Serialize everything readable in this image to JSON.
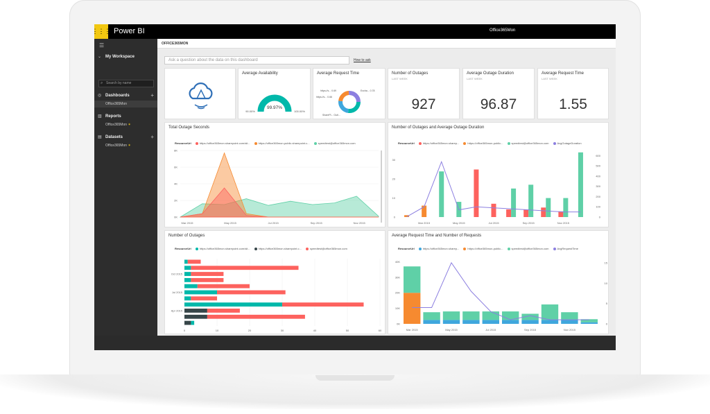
{
  "app": {
    "title": "Power BI",
    "user": "Office365Mon"
  },
  "sidebar": {
    "workspace": "My Workspace",
    "search_placeholder": "Search by name",
    "sections": [
      {
        "label": "Dashboards",
        "item": "Office365Mon"
      },
      {
        "label": "Reports",
        "item": "Office365Mon"
      },
      {
        "label": "Datasets",
        "item": "Office365Mon"
      }
    ]
  },
  "dashboard": {
    "breadcrumb": "OFFICE365MON",
    "qa_placeholder": "Ask a question about the data on this dashboard",
    "how_to_ask": "How to ask"
  },
  "tiles": {
    "availability": {
      "title": "Average Availability",
      "value": "99.97%",
      "min": "90.00%",
      "max": "100.00%"
    },
    "request_time_donut": {
      "title": "Average Request Time",
      "labels": [
        "https://s... 0.69",
        "https://s... 0.66",
        "Excha... 0.78",
        "SharePl... Outl..."
      ]
    },
    "outages": {
      "title": "Number of Outages",
      "sub": "LAST WEEK",
      "value": "927"
    },
    "outage_duration": {
      "title": "Average Outage Duration",
      "sub": "LAST WEEK",
      "value": "96.87"
    },
    "request_time": {
      "title": "Average Request Time",
      "sub": "LAST WEEK",
      "value": "1.55"
    },
    "total_outage": {
      "title": "Total Outage Seconds",
      "legend_title": "ResourceUrl",
      "legend": [
        "https://office365mon.sharepoint.com/sit...",
        "https://office365mon-public.sharepoint.c...",
        "speedtest@office365mon.com"
      ]
    },
    "outages_duration": {
      "title": "Number of Outages and Average Outage Duration",
      "legend_title": "ResourceUrl",
      "legend": [
        "https://office365mon.sharep...",
        "https://office365mon-public...",
        "speedtest@office365mon.com",
        "AvgOutageDuration"
      ]
    },
    "num_outages": {
      "title": "Number of Outages",
      "legend_title": "ResourceUrl",
      "legend": [
        "https://office365mon.sharepoint.com/sit...",
        "https://office365mon.sharepoint.c...",
        "speedtest@office365mon.com"
      ]
    },
    "req_time_requests": {
      "title": "Average Request Time and Number of Requests",
      "legend_title": "ResourceUrl",
      "legend": [
        "https://office365mon.sharep...",
        "https://office365mon-public...",
        "speedtest@office365mon.com",
        "AvgRequestTime"
      ]
    }
  },
  "colors": {
    "red": "#fd625e",
    "orange": "#f68a30",
    "teal": "#5fd0a7",
    "purple": "#8c7fe0",
    "dark": "#374649",
    "cyan": "#01b8aa",
    "blue": "#3fa7dd"
  },
  "chart_data": [
    {
      "type": "area",
      "title": "Total Outage Seconds",
      "x": [
        "Mar 2015",
        "Apr 2015",
        "May 2015",
        "Jun 2015",
        "Jul 2015",
        "Aug 2015",
        "Sep 2015",
        "Oct 2015",
        "Nov 2015",
        "Dec 2015"
      ],
      "x_tick_labels": [
        "Mar 2015",
        "May 2015",
        "Jul 2015",
        "Sep 2015",
        "Nov 2015"
      ],
      "y_tick_labels": [
        "0K",
        "2K",
        "4K",
        "6K",
        "8K"
      ],
      "ylim": [
        0,
        8000
      ],
      "series": [
        {
          "name": "https://office365mon.sharepoint.com/sit...",
          "values": [
            0,
            400,
            3500,
            200,
            0,
            0,
            0,
            0,
            0,
            0
          ]
        },
        {
          "name": "https://office365mon-public.sharepoint.c...",
          "values": [
            0,
            400,
            7700,
            400,
            0,
            0,
            0,
            0,
            0,
            0
          ]
        },
        {
          "name": "speedtest@office365mon.com",
          "values": [
            0,
            1600,
            1500,
            2200,
            1400,
            1900,
            1500,
            1700,
            2500,
            100
          ]
        }
      ]
    },
    {
      "type": "bar",
      "title": "Number of Outages and Average Outage Duration",
      "x_tick_labels": [
        "Mar 2015",
        "May 2015",
        "Jul 2015",
        "Sep 2015",
        "Nov 2015"
      ],
      "y_tick_labels": [
        "0",
        "10",
        "20",
        "30"
      ],
      "y2_tick_labels": [
        "0",
        "100",
        "200",
        "300",
        "400",
        "500",
        "600"
      ],
      "ylim": [
        0,
        35
      ],
      "y2lim": [
        0,
        650
      ],
      "categories": [
        "Feb 2015",
        "Mar 2015",
        "Apr 2015",
        "May 2015",
        "Jun 2015",
        "Jul 2015",
        "Aug 2015",
        "Sep 2015",
        "Oct 2015",
        "Nov 2015",
        "Dec 2015"
      ],
      "series": [
        {
          "name": "https://office365mon.sharep...",
          "values": [
            0,
            0,
            0,
            0,
            25,
            7,
            4,
            4,
            5,
            3,
            0
          ]
        },
        {
          "name": "https://office365mon-public...",
          "values": [
            1,
            6,
            0,
            0,
            0,
            0,
            0,
            0,
            0,
            0,
            0
          ]
        },
        {
          "name": "speedtest@office365mon.com",
          "values": [
            0,
            0,
            24,
            8,
            0,
            0,
            15,
            17,
            10,
            10,
            34
          ]
        },
        {
          "name": "AvgOutageDuration",
          "values": [
            2,
            100,
            540,
            70,
            100,
            90,
            80,
            70,
            60,
            50,
            50
          ]
        }
      ]
    },
    {
      "type": "bar",
      "orientation": "horizontal",
      "title": "Number of Outages",
      "y_tick_labels": [
        "Oct 2015",
        "Jul 2015",
        "Apr 2015"
      ],
      "x_tick_labels": [
        "0",
        "10",
        "20",
        "30",
        "40",
        "50",
        "60"
      ],
      "xlim": [
        0,
        60
      ],
      "categories": [
        "Dec 2015",
        "Nov 2015",
        "Oct 2015",
        "Sep 2015",
        "Aug 2015",
        "Jul 2015",
        "Jun 2015",
        "May 2015",
        "Apr 2015",
        "Mar 2015",
        "Feb 2015"
      ],
      "series": [
        {
          "name": "https://office365mon.sharepoint.com/sit...",
          "values": [
            0,
            0,
            0,
            0,
            0,
            0,
            0,
            0,
            7,
            7,
            2
          ]
        },
        {
          "name": "https://office365mon.sharepoint.c...",
          "values": [
            1,
            2,
            2,
            2,
            4,
            10,
            2,
            30,
            0,
            0,
            1
          ]
        },
        {
          "name": "speedtest@office365mon.com",
          "values": [
            4,
            33,
            10,
            10,
            16,
            21,
            8,
            25,
            10,
            30,
            0
          ]
        }
      ]
    },
    {
      "type": "bar",
      "title": "Average Request Time and Number of Requests",
      "x_tick_labels": [
        "Mar 2015",
        "May 2015",
        "Jul 2015",
        "Sep 2015",
        "Nov 2015"
      ],
      "y_tick_labels": [
        "0K",
        "10K",
        "20K",
        "30K",
        "40K"
      ],
      "y2_tick_labels": [
        "0",
        "5",
        "10",
        "15"
      ],
      "ylim": [
        0,
        42000
      ],
      "y2lim": [
        0,
        16
      ],
      "categories": [
        "Mar 2015",
        "Apr 2015",
        "May 2015",
        "Jun 2015",
        "Jul 2015",
        "Aug 2015",
        "Sep 2015",
        "Oct 2015",
        "Nov 2015",
        "Dec 2015"
      ],
      "series": [
        {
          "name": "https://office365mon.sharep...",
          "values": [
            0,
            2500,
            2500,
            2500,
            2500,
            2500,
            2500,
            2500,
            2500,
            1000
          ]
        },
        {
          "name": "https://office365mon-public...",
          "values": [
            20000,
            0,
            0,
            0,
            0,
            0,
            0,
            0,
            0,
            0
          ]
        },
        {
          "name": "speedtest@office365mon.com",
          "values": [
            17000,
            5000,
            5500,
            5500,
            5500,
            5500,
            4000,
            10000,
            5000,
            2000
          ]
        },
        {
          "name": "AvgRequestTime",
          "values": [
            4,
            4,
            15,
            8,
            3,
            1,
            2,
            1,
            1,
            1
          ]
        }
      ]
    }
  ]
}
